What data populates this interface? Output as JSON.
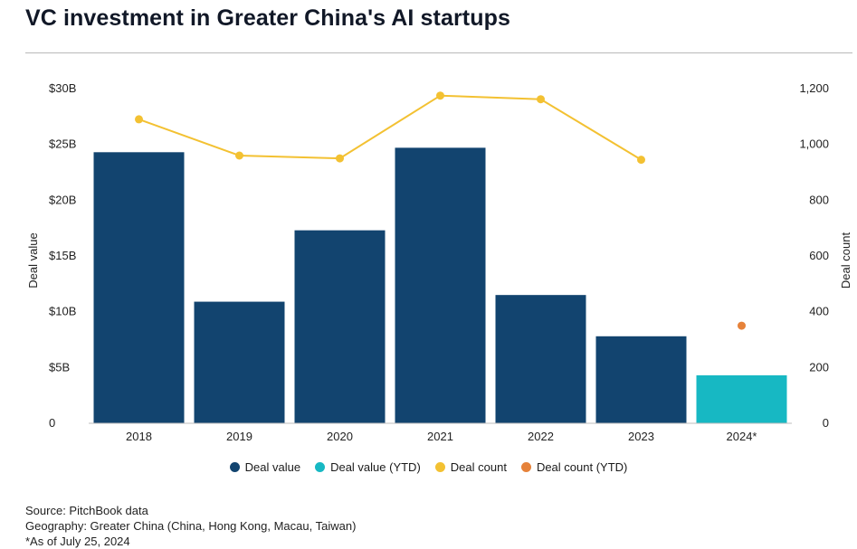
{
  "title": "VC investment in Greater China's AI startups",
  "colors": {
    "deal_value": "#12446f",
    "deal_value_ytd": "#17b8c3",
    "deal_count": "#f3c132",
    "deal_count_ytd": "#e6823a"
  },
  "chart_data": {
    "type": "bar",
    "title": "VC investment in Greater China's AI startups",
    "categories": [
      "2018",
      "2019",
      "2020",
      "2021",
      "2022",
      "2023",
      "2024*"
    ],
    "ylabel": "Deal value",
    "y2label": "Deal count",
    "ylim": [
      0,
      30
    ],
    "y2lim": [
      0,
      1200
    ],
    "y_ticks": [
      "0",
      "$5B",
      "$10B",
      "$15B",
      "$20B",
      "$25B",
      "$30B"
    ],
    "y2_ticks": [
      "0",
      "200",
      "400",
      "600",
      "800",
      "1,000",
      "1,200"
    ],
    "series": [
      {
        "name": "Deal value",
        "kind": "bar",
        "axis": "left",
        "values": [
          24.3,
          10.9,
          17.3,
          24.7,
          11.5,
          7.8,
          null
        ]
      },
      {
        "name": "Deal value (YTD)",
        "kind": "bar",
        "axis": "left",
        "values": [
          null,
          null,
          null,
          null,
          null,
          null,
          4.3
        ]
      },
      {
        "name": "Deal count",
        "kind": "line",
        "axis": "right",
        "values": [
          1090,
          960,
          950,
          1175,
          1162,
          945,
          null
        ]
      },
      {
        "name": "Deal count (YTD)",
        "kind": "point",
        "axis": "right",
        "values": [
          null,
          null,
          null,
          null,
          null,
          null,
          350
        ]
      }
    ],
    "grid": false,
    "legend_position": "bottom"
  },
  "legend": {
    "items": [
      {
        "label": "Deal value",
        "color": "#12446f"
      },
      {
        "label": "Deal value (YTD)",
        "color": "#17b8c3"
      },
      {
        "label": "Deal count",
        "color": "#f3c132"
      },
      {
        "label": "Deal count (YTD)",
        "color": "#e6823a"
      }
    ]
  },
  "source": {
    "line1": "Source: PitchBook data",
    "line2": "Geography: Greater China (China, Hong Kong, Macau, Taiwan)",
    "line3": "*As of July 25, 2024"
  }
}
